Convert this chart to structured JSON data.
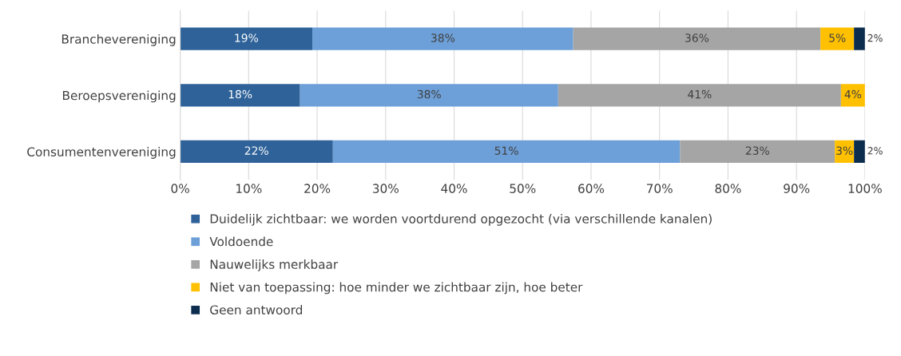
{
  "chart_data": {
    "type": "bar",
    "orientation": "horizontal",
    "stacked": true,
    "categories": [
      "Branchevereniging",
      "Beroepsvereniging",
      "Consumentenvereniging"
    ],
    "series": [
      {
        "name": "Duidelijk zichtbaar: we worden voortdurend opgezocht (via verschillende kanalen)",
        "color": "#2e6299",
        "values": [
          19.3,
          17.5,
          22.3
        ],
        "value_labels": [
          "19%",
          "18%",
          "22%"
        ]
      },
      {
        "name": "Voldoende",
        "color": "#6d9fd8",
        "values": [
          38.1,
          37.7,
          50.7
        ],
        "value_labels": [
          "38%",
          "38%",
          "51%"
        ]
      },
      {
        "name": "Nauwelijks merkbaar",
        "color": "#a5a5a5",
        "values": [
          36.1,
          41.3,
          22.6
        ],
        "value_labels": [
          "36%",
          "41%",
          "23%"
        ]
      },
      {
        "name": "Niet van toepassing: hoe minder we zichtbaar zijn, hoe beter",
        "color": "#ffc000",
        "values": [
          4.9,
          3.5,
          2.8
        ],
        "value_labels": [
          "5%",
          "4%",
          "3%"
        ]
      },
      {
        "name": "Geen antwoord",
        "color": "#0d2d4f",
        "values": [
          1.6,
          null,
          1.6
        ],
        "value_labels": [
          "2%",
          null,
          "2%"
        ]
      }
    ],
    "xlim": [
      0,
      100
    ],
    "xticks": [
      {
        "value": 0,
        "label": "0%"
      },
      {
        "value": 10,
        "label": "10%"
      },
      {
        "value": 20,
        "label": "20%"
      },
      {
        "value": 30,
        "label": "30%"
      },
      {
        "value": 40,
        "label": "40%"
      },
      {
        "value": 50,
        "label": "50%"
      },
      {
        "value": 60,
        "label": "60%"
      },
      {
        "value": 70,
        "label": "70%"
      },
      {
        "value": 80,
        "label": "80%"
      },
      {
        "value": 90,
        "label": "90%"
      },
      {
        "value": 100,
        "label": "100%"
      }
    ],
    "grid": "x",
    "legend": "bottom"
  }
}
